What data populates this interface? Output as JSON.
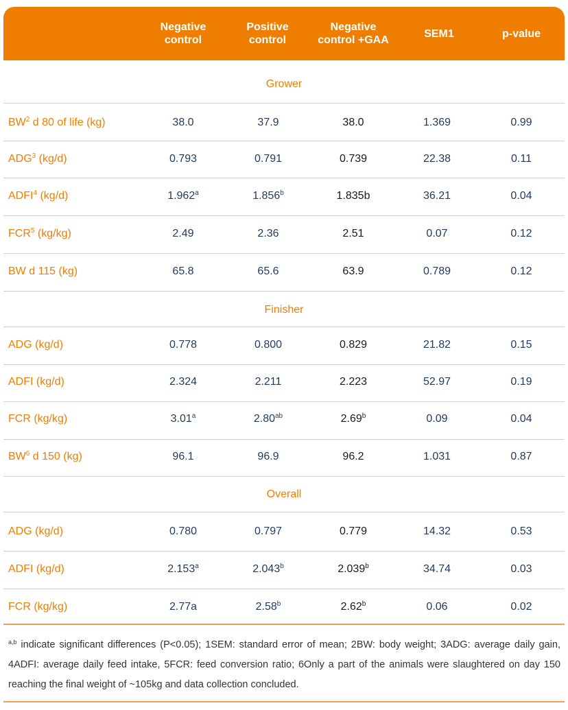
{
  "colors": {
    "accent": "#ef7d00",
    "value_blue": "#1f3a5c",
    "value_dark": "#1a1a1a"
  },
  "header": {
    "col1": "Negative\ncontrol",
    "col2": "Positive\ncontrol",
    "col3": "Negative\ncontrol +GAA",
    "col4": "SEM1",
    "col5": "p-value"
  },
  "sections": [
    {
      "title": "Grower",
      "rows": [
        {
          "label": "BW",
          "label_sup": "2",
          "label_rest": " d 80 of life (kg)",
          "v1": "38.0",
          "v1_sup": "",
          "v2": "37.9",
          "v2_sup": "",
          "v3": "38.0",
          "v3_sup": "",
          "sem": "1.369",
          "p": "0.99"
        },
        {
          "label": "ADG",
          "label_sup": "3",
          "label_rest": " (kg/d)",
          "v1": "0.793",
          "v1_sup": "",
          "v2": "0.791",
          "v2_sup": "",
          "v3": "0.739",
          "v3_sup": "",
          "sem": "22.38",
          "p": "0.11"
        },
        {
          "label": "ADFI",
          "label_sup": "4",
          "label_rest": " (kg/d)",
          "v1": "1.962",
          "v1_sup": "a",
          "v2": "1.856",
          "v2_sup": "b",
          "v3": "1.835b",
          "v3_sup": "",
          "sem": "36.21",
          "p": "0.04"
        },
        {
          "label": "FCR",
          "label_sup": "5",
          "label_rest": " (kg/kg)",
          "v1": "2.49",
          "v1_sup": "",
          "v2": "2.36",
          "v2_sup": "",
          "v3": "2.51",
          "v3_sup": "",
          "sem": "0.07",
          "p": "0.12"
        },
        {
          "label": "BW d 115 (kg)",
          "label_sup": "",
          "label_rest": "",
          "v1": "65.8",
          "v1_sup": "",
          "v2": "65.6",
          "v2_sup": "",
          "v3": "63.9",
          "v3_sup": "",
          "sem": "0.789",
          "p": "0.12"
        }
      ]
    },
    {
      "title": "Finisher",
      "rows": [
        {
          "label": "ADG (kg/d)",
          "label_sup": "",
          "label_rest": "",
          "v1": "0.778",
          "v1_sup": "",
          "v2": "0.800",
          "v2_sup": "",
          "v3": "0.829",
          "v3_sup": "",
          "sem": "21.82",
          "p": "0.15"
        },
        {
          "label": "ADFI (kg/d)",
          "label_sup": "",
          "label_rest": "",
          "v1": "2.324",
          "v1_sup": "",
          "v2": "2.211",
          "v2_sup": "",
          "v3": "2.223",
          "v3_sup": "",
          "sem": "52.97",
          "p": "0.19"
        },
        {
          "label": "FCR (kg/kg)",
          "label_sup": "",
          "label_rest": "",
          "v1": "3.01",
          "v1_sup": "a",
          "v2": "2.80",
          "v2_sup": "ab",
          "v3": "2.69",
          "v3_sup": "b",
          "sem": "0.09",
          "p": "0.04"
        },
        {
          "label": "BW",
          "label_sup": "6",
          "label_rest": " d 150 (kg)",
          "v1": "96.1",
          "v1_sup": "",
          "v2": "96.9",
          "v2_sup": "",
          "v3": "96.2",
          "v3_sup": "",
          "sem": "1.031",
          "p": "0.87"
        }
      ]
    },
    {
      "title": "Overall",
      "rows": [
        {
          "label": "ADG (kg/d)",
          "label_sup": "",
          "label_rest": "",
          "v1": "0.780",
          "v1_sup": "",
          "v2": "0.797",
          "v2_sup": "",
          "v3": "0.779",
          "v3_sup": "",
          "sem": "14.32",
          "p": "0.53"
        },
        {
          "label": "ADFI (kg/d)",
          "label_sup": "",
          "label_rest": "",
          "v1": "2.153",
          "v1_sup": "a",
          "v2": "2.043",
          "v2_sup": "b",
          "v3": "2.039",
          "v3_sup": "b",
          "sem": "34.74",
          "p": "0.03"
        },
        {
          "label": "FCR (kg/kg)",
          "label_sup": "",
          "label_rest": "",
          "v1": "2.77a",
          "v1_sup": "",
          "v2": "2.58",
          "v2_sup": "b",
          "v3": "2.62",
          "v3_sup": "b",
          "sem": "0.06",
          "p": "0.02"
        }
      ]
    }
  ],
  "footnote": {
    "sup": "a,b",
    "text": " indicate significant differences (P<0.05); 1SEM: standard error of mean; 2BW: body weight; 3ADG: average daily gain, 4ADFI: average daily feed intake, 5FCR: feed conversion ratio; 6Only a part of the animals were slaughtered on day 150 reaching the final weight of ~105kg and data collection concluded."
  }
}
